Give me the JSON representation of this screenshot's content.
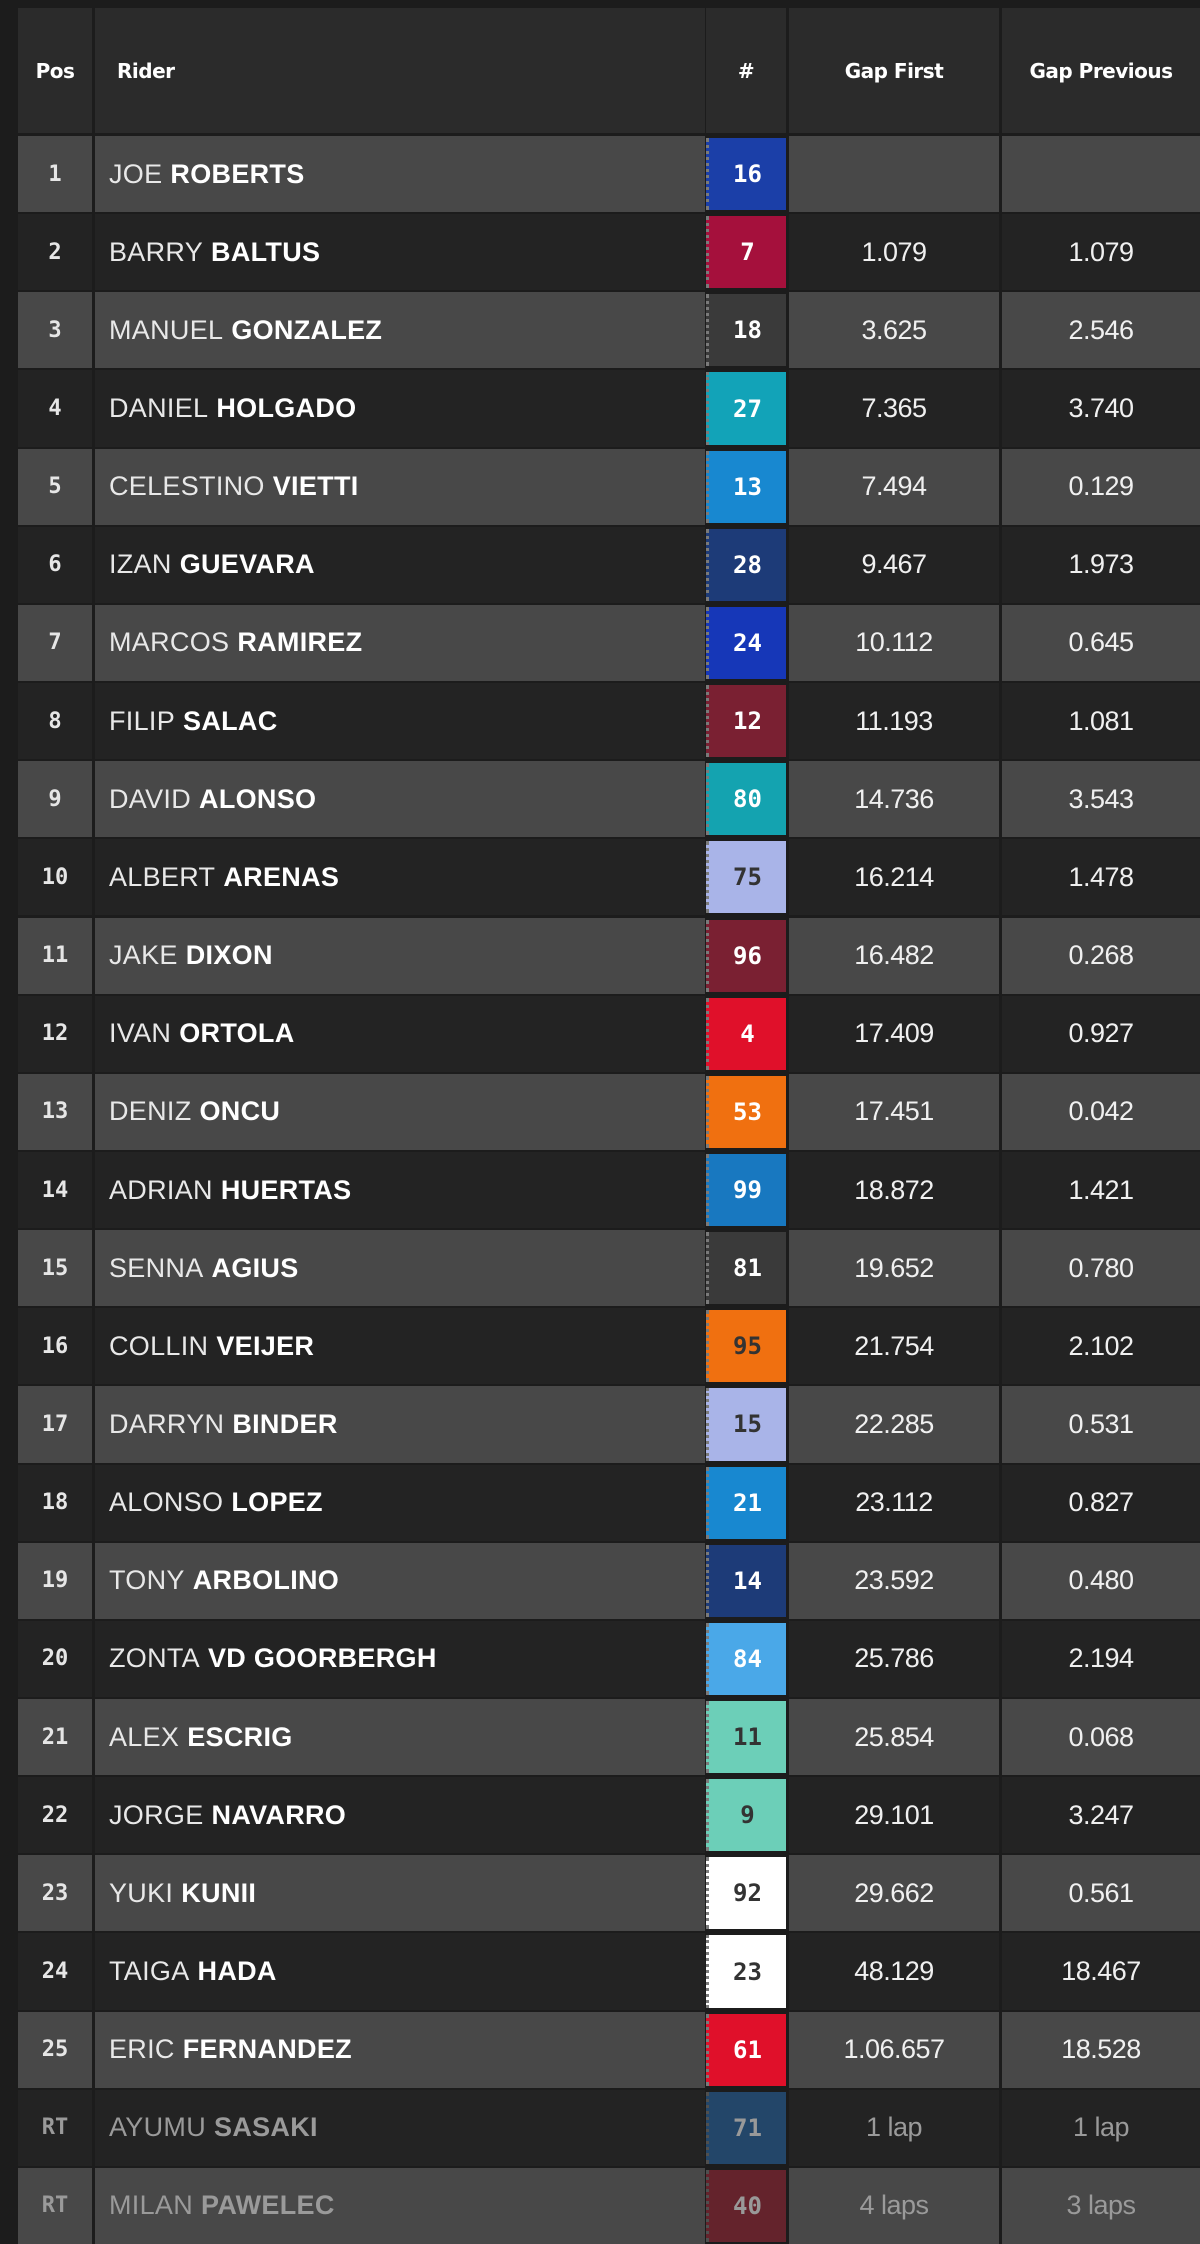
{
  "header": {
    "pos": "Pos",
    "rider": "Rider",
    "number": "#",
    "gap_first": "Gap First",
    "gap_previous": "Gap Previous"
  },
  "rows": [
    {
      "pos": "1",
      "first": "JOE",
      "last": "ROBERTS",
      "num": "16",
      "color": "#1b3fa8",
      "text_color": "#ffffff",
      "gap_first": "",
      "gap_previous": ""
    },
    {
      "pos": "2",
      "first": "BARRY",
      "last": "BALTUS",
      "num": "7",
      "color": "#a5103c",
      "text_color": "#ffffff",
      "gap_first": "1.079",
      "gap_previous": "1.079"
    },
    {
      "pos": "3",
      "first": "MANUEL",
      "last": "GONZALEZ",
      "num": "18",
      "color": "#3a3a3a",
      "text_color": "#ffffff",
      "gap_first": "3.625",
      "gap_previous": "2.546"
    },
    {
      "pos": "4",
      "first": "DANIEL",
      "last": "HOLGADO",
      "num": "27",
      "color": "#12a3b8",
      "text_color": "#ffffff",
      "gap_first": "7.365",
      "gap_previous": "3.740"
    },
    {
      "pos": "5",
      "first": "CELESTINO",
      "last": "VIETTI",
      "num": "13",
      "color": "#1888d0",
      "text_color": "#ffffff",
      "gap_first": "7.494",
      "gap_previous": "0.129"
    },
    {
      "pos": "6",
      "first": "IZAN",
      "last": "GUEVARA",
      "num": "28",
      "color": "#1d3b78",
      "text_color": "#ffffff",
      "gap_first": "9.467",
      "gap_previous": "1.973"
    },
    {
      "pos": "7",
      "first": "MARCOS",
      "last": "RAMIREZ",
      "num": "24",
      "color": "#1637b8",
      "text_color": "#ffffff",
      "gap_first": "10.112",
      "gap_previous": "0.645"
    },
    {
      "pos": "8",
      "first": "FILIP",
      "last": "SALAC",
      "num": "12",
      "color": "#7a2032",
      "text_color": "#ffffff",
      "gap_first": "11.193",
      "gap_previous": "1.081"
    },
    {
      "pos": "9",
      "first": "DAVID",
      "last": "ALONSO",
      "num": "80",
      "color": "#14a3b0",
      "text_color": "#ffffff",
      "gap_first": "14.736",
      "gap_previous": "3.543"
    },
    {
      "pos": "10",
      "first": "ALBERT",
      "last": "ARENAS",
      "num": "75",
      "color": "#a9b4e8",
      "text_color": "#333333",
      "gap_first": "16.214",
      "gap_previous": "1.478"
    },
    {
      "pos": "11",
      "first": "JAKE",
      "last": "DIXON",
      "num": "96",
      "color": "#7a2032",
      "text_color": "#ffffff",
      "gap_first": "16.482",
      "gap_previous": "0.268"
    },
    {
      "pos": "12",
      "first": "IVAN",
      "last": "ORTOLA",
      "num": "4",
      "color": "#e0102a",
      "text_color": "#ffffff",
      "gap_first": "17.409",
      "gap_previous": "0.927"
    },
    {
      "pos": "13",
      "first": "DENIZ",
      "last": "ONCU",
      "num": "53",
      "color": "#f07010",
      "text_color": "#ffffff",
      "gap_first": "17.451",
      "gap_previous": "0.042"
    },
    {
      "pos": "14",
      "first": "ADRIAN",
      "last": "HUERTAS",
      "num": "99",
      "color": "#1878c0",
      "text_color": "#ffffff",
      "gap_first": "18.872",
      "gap_previous": "1.421"
    },
    {
      "pos": "15",
      "first": "SENNA",
      "last": "AGIUS",
      "num": "81",
      "color": "#3a3a3a",
      "text_color": "#ffffff",
      "gap_first": "19.652",
      "gap_previous": "0.780"
    },
    {
      "pos": "16",
      "first": "COLLIN",
      "last": "VEIJER",
      "num": "95",
      "color": "#f07010",
      "text_color": "#333333",
      "gap_first": "21.754",
      "gap_previous": "2.102"
    },
    {
      "pos": "17",
      "first": "DARRYN",
      "last": "BINDER",
      "num": "15",
      "color": "#a9b4e8",
      "text_color": "#333333",
      "gap_first": "22.285",
      "gap_previous": "0.531"
    },
    {
      "pos": "18",
      "first": "ALONSO",
      "last": "LOPEZ",
      "num": "21",
      "color": "#1888d0",
      "text_color": "#ffffff",
      "gap_first": "23.112",
      "gap_previous": "0.827"
    },
    {
      "pos": "19",
      "first": "TONY",
      "last": "ARBOLINO",
      "num": "14",
      "color": "#1d3b78",
      "text_color": "#ffffff",
      "gap_first": "23.592",
      "gap_previous": "0.480"
    },
    {
      "pos": "20",
      "first": "ZONTA",
      "last": "VD GOORBERGH",
      "num": "84",
      "color": "#4aa8e8",
      "text_color": "#ffffff",
      "gap_first": "25.786",
      "gap_previous": "2.194"
    },
    {
      "pos": "21",
      "first": "ALEX",
      "last": "ESCRIG",
      "num": "11",
      "color": "#6ccfb8",
      "text_color": "#333333",
      "gap_first": "25.854",
      "gap_previous": "0.068"
    },
    {
      "pos": "22",
      "first": "JORGE",
      "last": "NAVARRO",
      "num": "9",
      "color": "#6ccfb8",
      "text_color": "#333333",
      "gap_first": "29.101",
      "gap_previous": "3.247"
    },
    {
      "pos": "23",
      "first": "YUKI",
      "last": "KUNII",
      "num": "92",
      "color": "#ffffff",
      "text_color": "#333333",
      "gap_first": "29.662",
      "gap_previous": "0.561"
    },
    {
      "pos": "24",
      "first": "TAIGA",
      "last": "HADA",
      "num": "23",
      "color": "#ffffff",
      "text_color": "#333333",
      "gap_first": "48.129",
      "gap_previous": "18.467"
    },
    {
      "pos": "25",
      "first": "ERIC",
      "last": "FERNANDEZ",
      "num": "61",
      "color": "#e0102a",
      "text_color": "#ffffff",
      "gap_first": "1.06.657",
      "gap_previous": "18.528"
    },
    {
      "pos": "RT",
      "first": "AYUMU",
      "last": "SASAKI",
      "num": "71",
      "color": "#2a6aa8",
      "text_color": "#ffffff",
      "gap_first": "1 lap",
      "gap_previous": "1 lap"
    },
    {
      "pos": "RT",
      "first": "MILAN",
      "last": "PAWELEC",
      "num": "40",
      "color": "#a02a3a",
      "text_color": "#ffffff",
      "gap_first": "4 laps",
      "gap_previous": "3 laps"
    }
  ]
}
